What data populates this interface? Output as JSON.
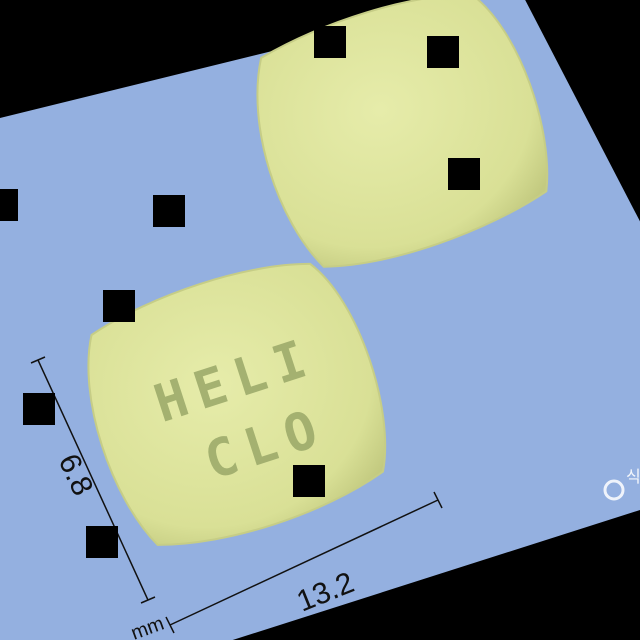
{
  "pill": {
    "imprint_line1": "HELI",
    "imprint_line2": "CLO",
    "color": "#dde49a",
    "shadow_color": "#c8cf84"
  },
  "background": {
    "card_color": "#94b0e0",
    "outside_color": "#000000"
  },
  "dimensions": {
    "length": "13.2",
    "width": "6.8",
    "unit": "mm"
  },
  "logo": {
    "text": "식"
  }
}
